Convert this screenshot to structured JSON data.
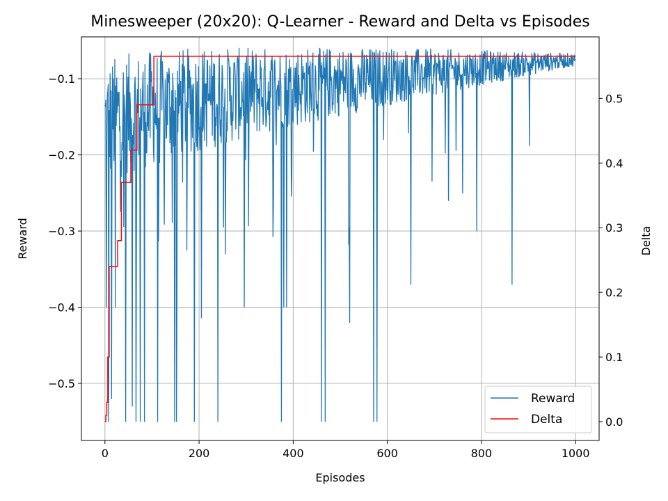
{
  "chart_data": {
    "type": "line",
    "title": "Minesweeper (20x20): Q-Learner - Reward and Delta vs Episodes",
    "xlabel": "Episodes",
    "ylabel": "Reward",
    "y2label": "Delta",
    "xlim": [
      -50,
      1050
    ],
    "ylim": [
      -0.575,
      -0.045
    ],
    "y2lim": [
      -0.029,
      0.595
    ],
    "xticks": [
      0,
      200,
      400,
      600,
      800,
      1000
    ],
    "yticks": [
      -0.1,
      -0.2,
      -0.3,
      -0.4,
      -0.5
    ],
    "y2ticks": [
      0.0,
      0.1,
      0.2,
      0.3,
      0.4,
      0.5
    ],
    "xtick_labels": [
      "0",
      "200",
      "400",
      "600",
      "800",
      "1000"
    ],
    "ytick_labels": [
      "−0.1",
      "−0.2",
      "−0.3",
      "−0.4",
      "−0.5"
    ],
    "y2tick_labels": [
      "0.0",
      "0.1",
      "0.2",
      "0.3",
      "0.4",
      "0.5"
    ],
    "grid": true,
    "legend_position": "lower-right",
    "series": [
      {
        "name": "Reward",
        "axis": "left",
        "color": "#1f77b4",
        "summary": {
          "episodes": 1000,
          "start_mean": -0.16,
          "end_mean": -0.075,
          "min": -0.55,
          "max": -0.06
        },
        "spikes": [
          [
            3,
            -0.4
          ],
          [
            8,
            -0.55
          ],
          [
            14,
            -0.52
          ],
          [
            22,
            -0.4
          ],
          [
            44,
            -0.55
          ],
          [
            58,
            -0.53
          ],
          [
            66,
            -0.55
          ],
          [
            75,
            -0.55
          ],
          [
            84,
            -0.55
          ],
          [
            112,
            -0.55
          ],
          [
            148,
            -0.55
          ],
          [
            152,
            -0.55
          ],
          [
            190,
            -0.55
          ],
          [
            240,
            -0.55
          ],
          [
            296,
            -0.4
          ],
          [
            375,
            -0.55
          ],
          [
            380,
            -0.4
          ],
          [
            386,
            -0.4
          ],
          [
            460,
            -0.55
          ],
          [
            468,
            -0.55
          ],
          [
            520,
            -0.42
          ],
          [
            571,
            -0.55
          ],
          [
            578,
            -0.55
          ],
          [
            650,
            -0.37
          ],
          [
            730,
            -0.26
          ],
          [
            760,
            -0.25
          ],
          [
            790,
            -0.3
          ],
          [
            865,
            -0.37
          ]
        ]
      },
      {
        "name": "Delta",
        "axis": "right",
        "color": "#ff0000",
        "x": [
          0,
          2,
          2,
          4,
          4,
          6,
          6,
          9,
          9,
          12,
          12,
          27,
          27,
          35,
          35,
          55,
          55,
          62,
          62,
          68,
          68,
          104,
          104,
          1000
        ],
        "values": [
          0.0,
          0.0,
          0.01,
          0.01,
          0.03,
          0.03,
          0.1,
          0.1,
          0.24,
          0.24,
          0.24,
          0.24,
          0.28,
          0.28,
          0.37,
          0.37,
          0.42,
          0.42,
          0.42,
          0.42,
          0.49,
          0.49,
          0.565,
          0.565
        ]
      }
    ]
  }
}
